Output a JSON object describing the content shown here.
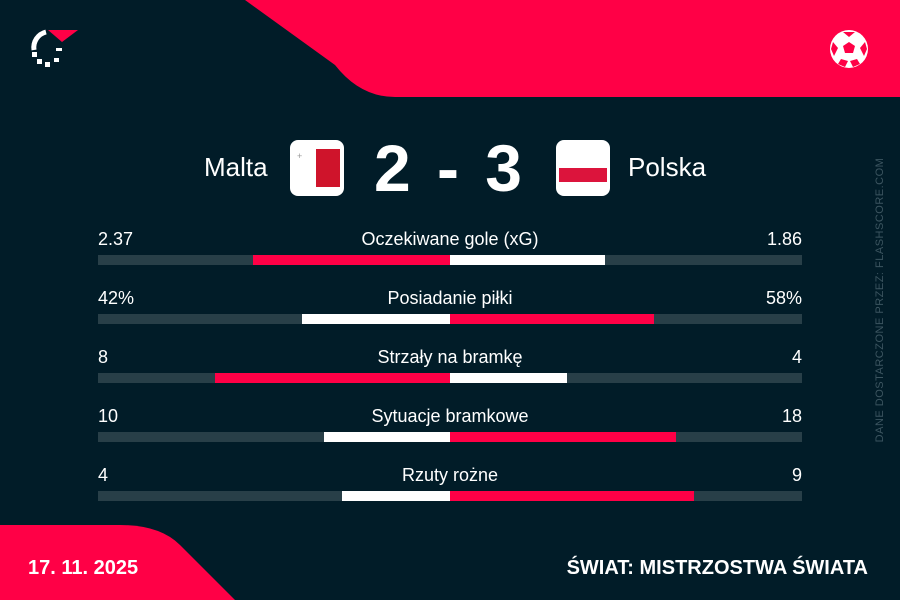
{
  "colors": {
    "background": "#011c28",
    "accent": "#ff0046",
    "track": "#283f48",
    "white": "#ffffff"
  },
  "icons": {
    "logo": "flashscore-logo",
    "sport": "football-icon"
  },
  "match": {
    "home": "Malta",
    "away": "Polska",
    "score": "2 - 3",
    "home_flag": "malta-flag",
    "away_flag": "poland-flag"
  },
  "stats": [
    {
      "name": "Oczekiwane gole (xG)",
      "home": "2.37",
      "away": "1.86",
      "home_val": 2.37,
      "away_val": 1.86,
      "leader": "home"
    },
    {
      "name": "Posiadanie piłki",
      "home": "42%",
      "away": "58%",
      "home_val": 42,
      "away_val": 58,
      "leader": "away"
    },
    {
      "name": "Strzały na bramkę",
      "home": "8",
      "away": "4",
      "home_val": 8,
      "away_val": 4,
      "leader": "home"
    },
    {
      "name": "Sytuacje bramkowe",
      "home": "10",
      "away": "18",
      "home_val": 10,
      "away_val": 18,
      "leader": "away"
    },
    {
      "name": "Rzuty rożne",
      "home": "4",
      "away": "9",
      "home_val": 4,
      "away_val": 9,
      "leader": "away"
    }
  ],
  "credit": "DANE DOSTARCZONE PRZEZ: FLASHSCORE.COM",
  "footer": {
    "date": "17. 11. 2025",
    "competition": "ŚWIAT: MISTRZOSTWA ŚWIATA"
  }
}
